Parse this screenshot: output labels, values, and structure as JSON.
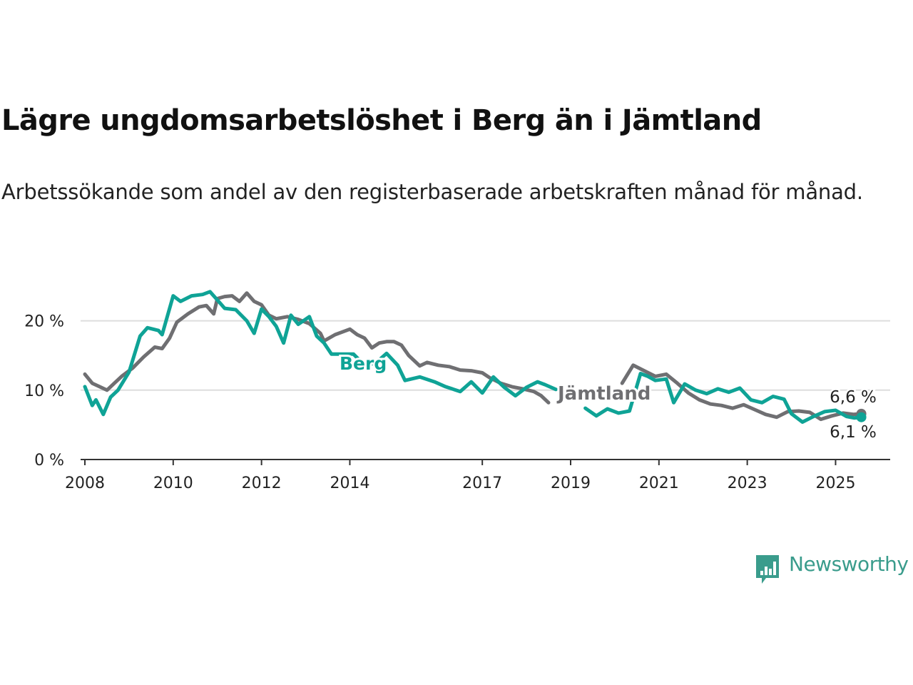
{
  "title": "Lägre ungdomsarbetslöshet i Berg än i Jämtland",
  "subtitle": "Arbetssökande som andel av den registerbaserade arbetskraften månad för månad.",
  "brand": {
    "name": "Newsworthy",
    "color": "#3a9c8c"
  },
  "colors": {
    "berg": "#0fa396",
    "jamtland": "#6f6f72",
    "grid": "#dddddd",
    "axis": "#333333"
  },
  "chart_data": {
    "type": "line",
    "ylim": [
      0,
      25
    ],
    "yticks": [
      0,
      10,
      20
    ],
    "ytick_labels": [
      "0 %",
      "10 %",
      "20 %"
    ],
    "xlim": [
      "2008-01",
      "2026-05"
    ],
    "xticks": [
      "2008-01",
      "2010-01",
      "2012-01",
      "2014-01",
      "2017-01",
      "2019-01",
      "2021-01",
      "2023-01",
      "2025-01"
    ],
    "xtick_labels": [
      "2008",
      "2010",
      "2012",
      "2014",
      "2017",
      "2019",
      "2021",
      "2023",
      "2025"
    ],
    "grid": "horizontal",
    "series": [
      {
        "key": "jamtland",
        "name": "Jämtland",
        "end_label": "6,6 %",
        "points": [
          [
            "2008-01",
            12.3
          ],
          [
            "2008-03",
            11.0
          ],
          [
            "2008-05",
            10.5
          ],
          [
            "2008-07",
            10.0
          ],
          [
            "2008-09",
            11.0
          ],
          [
            "2008-11",
            12.0
          ],
          [
            "2009-02",
            13.2
          ],
          [
            "2009-05",
            14.8
          ],
          [
            "2009-08",
            16.2
          ],
          [
            "2009-10",
            16.0
          ],
          [
            "2009-12",
            17.5
          ],
          [
            "2010-02",
            19.8
          ],
          [
            "2010-05",
            21.0
          ],
          [
            "2010-08",
            22.0
          ],
          [
            "2010-10",
            22.2
          ],
          [
            "2010-12",
            21.0
          ],
          [
            "2011-01",
            23.2
          ],
          [
            "2011-03",
            23.5
          ],
          [
            "2011-05",
            23.6
          ],
          [
            "2011-07",
            22.8
          ],
          [
            "2011-09",
            24.0
          ],
          [
            "2011-11",
            22.8
          ],
          [
            "2012-01",
            22.3
          ],
          [
            "2012-03",
            20.8
          ],
          [
            "2012-05",
            20.3
          ],
          [
            "2012-08",
            20.6
          ],
          [
            "2012-11",
            20.2
          ],
          [
            "2013-02",
            19.6
          ],
          [
            "2013-05",
            18.2
          ],
          [
            "2013-06",
            17.1
          ],
          [
            "2013-09",
            18.0
          ],
          [
            "2013-11",
            18.4
          ],
          [
            "2014-01",
            18.8
          ],
          [
            "2014-03",
            18.0
          ],
          [
            "2014-05",
            17.5
          ],
          [
            "2014-07",
            16.1
          ],
          [
            "2014-09",
            16.8
          ],
          [
            "2014-11",
            17.0
          ],
          [
            "2015-01",
            17.0
          ],
          [
            "2015-03",
            16.5
          ],
          [
            "2015-05",
            15.0
          ],
          [
            "2015-08",
            13.5
          ],
          [
            "2015-10",
            14.0
          ],
          [
            "2016-01",
            13.6
          ],
          [
            "2016-04",
            13.4
          ],
          [
            "2016-07",
            12.9
          ],
          [
            "2016-10",
            12.8
          ],
          [
            "2017-01",
            12.5
          ],
          [
            "2017-03",
            11.8
          ],
          [
            "2017-06",
            11.0
          ],
          [
            "2017-09",
            10.5
          ],
          [
            "2017-12",
            10.2
          ],
          [
            "2018-03",
            9.8
          ],
          [
            "2018-05",
            9.2
          ],
          [
            "2018-07",
            8.2
          ],
          [
            "2020-03",
            11.0
          ],
          [
            "2020-06",
            13.6
          ],
          [
            "2020-09",
            12.8
          ],
          [
            "2020-12",
            12.0
          ],
          [
            "2021-03",
            12.3
          ],
          [
            "2021-06",
            11.0
          ],
          [
            "2021-09",
            9.6
          ],
          [
            "2021-12",
            8.6
          ],
          [
            "2022-03",
            8.0
          ],
          [
            "2022-06",
            7.8
          ],
          [
            "2022-09",
            7.4
          ],
          [
            "2022-12",
            7.9
          ],
          [
            "2023-03",
            7.2
          ],
          [
            "2023-06",
            6.5
          ],
          [
            "2023-09",
            6.1
          ],
          [
            "2023-12",
            6.9
          ],
          [
            "2024-03",
            7.0
          ],
          [
            "2024-06",
            6.8
          ],
          [
            "2024-09",
            5.8
          ],
          [
            "2024-12",
            6.3
          ],
          [
            "2025-03",
            6.7
          ],
          [
            "2025-06",
            6.5
          ],
          [
            "2025-08",
            6.6
          ]
        ]
      },
      {
        "key": "berg",
        "name": "Berg",
        "end_label": "6,1 %",
        "points": [
          [
            "2008-01",
            10.5
          ],
          [
            "2008-03",
            7.8
          ],
          [
            "2008-04",
            8.6
          ],
          [
            "2008-06",
            6.5
          ],
          [
            "2008-08",
            9.0
          ],
          [
            "2008-10",
            10.0
          ],
          [
            "2009-01",
            12.6
          ],
          [
            "2009-04",
            17.8
          ],
          [
            "2009-06",
            19.0
          ],
          [
            "2009-09",
            18.6
          ],
          [
            "2009-10",
            18.0
          ],
          [
            "2010-01",
            23.6
          ],
          [
            "2010-03",
            22.8
          ],
          [
            "2010-06",
            23.6
          ],
          [
            "2010-09",
            23.8
          ],
          [
            "2010-11",
            24.2
          ],
          [
            "2011-01",
            23.0
          ],
          [
            "2011-03",
            21.8
          ],
          [
            "2011-06",
            21.6
          ],
          [
            "2011-09",
            20.0
          ],
          [
            "2011-11",
            18.2
          ],
          [
            "2012-01",
            21.7
          ],
          [
            "2012-03",
            20.6
          ],
          [
            "2012-05",
            19.2
          ],
          [
            "2012-07",
            16.8
          ],
          [
            "2012-09",
            20.8
          ],
          [
            "2012-11",
            19.5
          ],
          [
            "2013-02",
            20.6
          ],
          [
            "2013-04",
            17.8
          ],
          [
            "2013-06",
            16.8
          ],
          [
            "2013-08",
            15.2
          ],
          [
            "2014-02",
            15.2
          ],
          [
            "2014-05",
            13.6
          ],
          [
            "2014-08",
            13.9
          ],
          [
            "2014-11",
            15.3
          ],
          [
            "2015-02",
            13.6
          ],
          [
            "2015-04",
            11.4
          ],
          [
            "2015-08",
            11.9
          ],
          [
            "2015-12",
            11.2
          ],
          [
            "2016-03",
            10.5
          ],
          [
            "2016-07",
            9.8
          ],
          [
            "2016-10",
            11.2
          ],
          [
            "2017-01",
            9.6
          ],
          [
            "2017-04",
            11.9
          ],
          [
            "2017-07",
            10.4
          ],
          [
            "2017-10",
            9.2
          ],
          [
            "2018-01",
            10.4
          ],
          [
            "2018-04",
            11.2
          ],
          [
            "2018-06",
            10.8
          ],
          [
            "2018-09",
            10.1
          ],
          [
            "2019-05",
            7.4
          ],
          [
            "2019-08",
            6.3
          ],
          [
            "2019-11",
            7.3
          ],
          [
            "2020-02",
            6.7
          ],
          [
            "2020-05",
            7.0
          ],
          [
            "2020-08",
            12.4
          ],
          [
            "2020-10",
            12.0
          ],
          [
            "2020-12",
            11.4
          ],
          [
            "2021-03",
            11.6
          ],
          [
            "2021-05",
            8.2
          ],
          [
            "2021-08",
            10.9
          ],
          [
            "2021-11",
            10.0
          ],
          [
            "2022-02",
            9.5
          ],
          [
            "2022-05",
            10.2
          ],
          [
            "2022-08",
            9.7
          ],
          [
            "2022-11",
            10.3
          ],
          [
            "2023-02",
            8.6
          ],
          [
            "2023-05",
            8.2
          ],
          [
            "2023-08",
            9.1
          ],
          [
            "2023-11",
            8.7
          ],
          [
            "2024-01",
            6.6
          ],
          [
            "2024-04",
            5.4
          ],
          [
            "2024-07",
            6.2
          ],
          [
            "2024-10",
            6.9
          ],
          [
            "2025-01",
            7.1
          ],
          [
            "2025-04",
            6.2
          ],
          [
            "2025-06",
            6.0
          ],
          [
            "2025-08",
            6.1
          ]
        ]
      }
    ]
  }
}
